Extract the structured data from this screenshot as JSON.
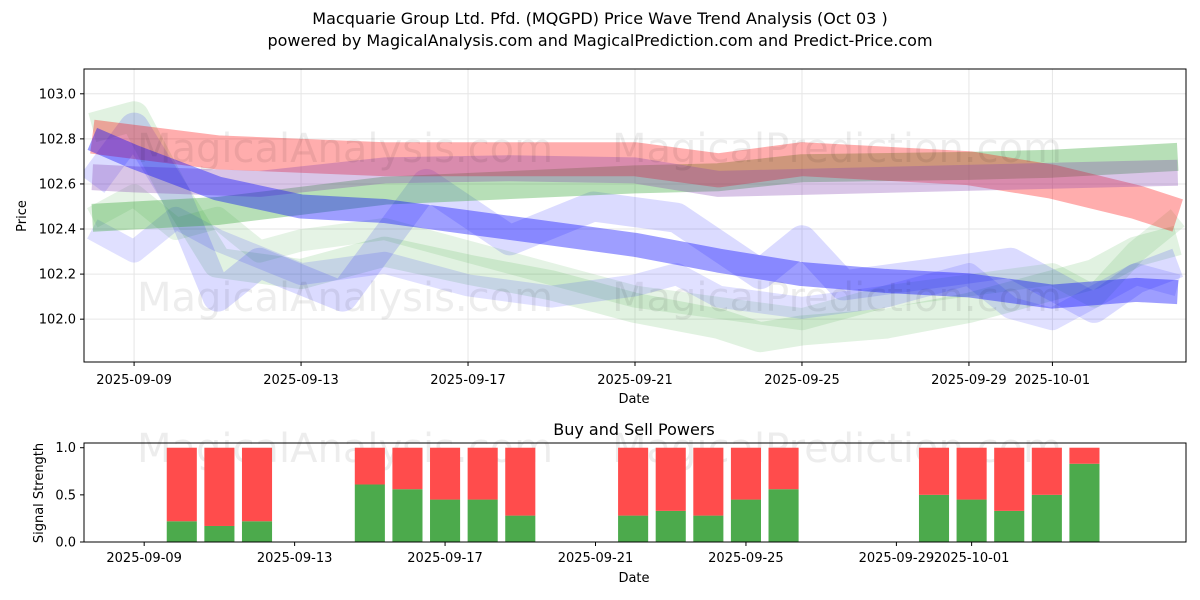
{
  "title": "Macquarie Group Ltd. Pfd. (MQGPD) Price Wave Trend Analysis (Oct 03 )",
  "subtitle": "powered by MagicalAnalysis.com and MagicalPrediction.com and Predict-Price.com",
  "watermarks": [
    "MagicalAnalysis.com",
    "MagicalPrediction.com"
  ],
  "colors": {
    "green": "#2ca02c",
    "red": "#ff0000",
    "blue": "#0000ff",
    "buy": "#4caa4c",
    "sell": "#ff4c4c"
  },
  "chart_data": [
    {
      "type": "line",
      "title": "",
      "xlabel": "Date",
      "ylabel": "Price",
      "ylim": [
        101.81,
        103.11
      ],
      "xlim": [
        "2025-09-07.8",
        "2025-10-04.2"
      ],
      "x_ticks": [
        "2025-09-09",
        "2025-09-13",
        "2025-09-17",
        "2025-09-21",
        "2025-09-25",
        "2025-09-29",
        "2025-10-01"
      ],
      "y_ticks": [
        "102.0",
        "102.2",
        "102.4",
        "102.6",
        "102.8",
        "103.0"
      ],
      "series": [
        {
          "name": "red trend band",
          "color": "#ff0000",
          "x_days": [
            8.0,
            11.0,
            15.0,
            21.0,
            23.0,
            25.0,
            29.0,
            31.0,
            33.0,
            34.0
          ],
          "values": [
            102.81,
            102.74,
            102.71,
            102.71,
            102.66,
            102.71,
            102.67,
            102.61,
            102.52,
            102.46
          ]
        },
        {
          "name": "green trend band",
          "color": "#2ca02c",
          "x_days": [
            8.0,
            11.0,
            15.0,
            21.0,
            23.0,
            25.0,
            29.0,
            31.0,
            34.0
          ],
          "values": [
            102.45,
            102.48,
            102.57,
            102.62,
            102.63,
            102.67,
            102.68,
            102.69,
            102.72
          ]
        },
        {
          "name": "purple trend band",
          "color": "#8040b0",
          "x_days": [
            8.0,
            9.0,
            12.0,
            15.0,
            18.0,
            21.0,
            23.0,
            34.0
          ],
          "values": [
            102.63,
            102.62,
            102.6,
            102.66,
            102.67,
            102.66,
            102.6,
            102.65
          ]
        },
        {
          "name": "blue trend line",
          "color": "#0000ff",
          "x_days": [
            8.0,
            9.0,
            11.0,
            13.0,
            15.0,
            17.0,
            19.0,
            21.0,
            23.0,
            25.0,
            27.0,
            29.0,
            31.0,
            33.0,
            34.0
          ],
          "values": [
            102.8,
            102.72,
            102.58,
            102.5,
            102.48,
            102.43,
            102.38,
            102.33,
            102.26,
            102.2,
            102.17,
            102.15,
            102.1,
            102.13,
            102.12
          ]
        },
        {
          "name": "green wave band",
          "color": "#2ca02c",
          "x_days": [
            8.0,
            9.0,
            10.0,
            11.0,
            13.0,
            15.0,
            17.0,
            19.0,
            21.0,
            23.0,
            24.0,
            25.0,
            27.0,
            29.0,
            31.0,
            32.0,
            33.0,
            34.0
          ],
          "values": [
            102.85,
            102.9,
            102.55,
            102.25,
            102.2,
            102.3,
            102.22,
            102.15,
            102.05,
            101.98,
            101.92,
            101.95,
            101.98,
            102.05,
            102.15,
            102.2,
            102.3,
            102.35
          ]
        },
        {
          "name": "blue wave band",
          "color": "#0000ff",
          "x_days": [
            8.0,
            9.0,
            10.0,
            11.0,
            12.0,
            14.0,
            16.0,
            18.0,
            20.0,
            22.0,
            24.0,
            25.0,
            26.0,
            28.0,
            30.0,
            32.0,
            33.0,
            34.0
          ],
          "values": [
            102.6,
            102.85,
            102.55,
            102.1,
            102.25,
            102.1,
            102.6,
            102.35,
            102.5,
            102.45,
            102.2,
            102.35,
            102.15,
            102.2,
            102.25,
            102.05,
            102.18,
            102.25
          ]
        },
        {
          "name": "green wave band 2",
          "color": "#2ca02c",
          "x_days": [
            8.0,
            9.0,
            10.0,
            11.0,
            12.0,
            13.0,
            15.0,
            17.0,
            19.0,
            21.0,
            23.0,
            25.0,
            27.0,
            29.0,
            31.0,
            32.0,
            33.0,
            34.0
          ],
          "values": [
            102.45,
            102.55,
            102.4,
            102.45,
            102.3,
            102.35,
            102.4,
            102.3,
            102.2,
            102.1,
            102.05,
            102.0,
            102.1,
            102.15,
            102.2,
            102.1,
            102.3,
            102.45
          ]
        },
        {
          "name": "blue wave band 2",
          "color": "#0000ff",
          "x_days": [
            8.0,
            9.0,
            10.0,
            11.0,
            13.0,
            15.0,
            17.0,
            19.0,
            21.0,
            22.0,
            23.0,
            25.0,
            27.0,
            29.0,
            30.0,
            31.0,
            32.0,
            33.0,
            34.0
          ],
          "values": [
            102.4,
            102.3,
            102.45,
            102.35,
            102.2,
            102.25,
            102.15,
            102.1,
            102.15,
            102.2,
            102.1,
            102.05,
            102.1,
            102.2,
            102.05,
            102.0,
            102.1,
            102.2,
            102.15
          ]
        }
      ]
    },
    {
      "type": "bar",
      "title": "Buy and Sell Powers",
      "xlabel": "Date",
      "ylabel": "Signal Strength",
      "ylim": [
        0,
        1.05
      ],
      "y_ticks": [
        "0.0",
        "0.5",
        "1.0"
      ],
      "x_ticks": [
        "2025-09-09",
        "2025-09-13",
        "2025-09-17",
        "2025-09-21",
        "2025-09-25",
        "2025-09-29",
        "2025-10-01"
      ],
      "categories": [
        "2025-09-10",
        "2025-09-11",
        "2025-09-12",
        "2025-09-15",
        "2025-09-16",
        "2025-09-17",
        "2025-09-18",
        "2025-09-19",
        "2025-09-22",
        "2025-09-23",
        "2025-09-24",
        "2025-09-25",
        "2025-09-26",
        "2025-09-30",
        "2025-10-01",
        "2025-10-02",
        "2025-10-03",
        "2025-10-04"
      ],
      "x_days": [
        10,
        11,
        12,
        15,
        16,
        17,
        18,
        19,
        22,
        23,
        24,
        25,
        26,
        30,
        31,
        32,
        33,
        34
      ],
      "series": [
        {
          "name": "Buy",
          "color": "#4caa4c",
          "values": [
            0.22,
            0.17,
            0.22,
            0.61,
            0.56,
            0.45,
            0.45,
            0.28,
            0.28,
            0.33,
            0.28,
            0.45,
            0.56,
            0.5,
            0.45,
            0.33,
            0.5,
            0.83
          ]
        },
        {
          "name": "Sell",
          "color": "#ff4c4c",
          "values": [
            0.78,
            0.83,
            0.78,
            0.39,
            0.44,
            0.55,
            0.55,
            0.72,
            0.72,
            0.67,
            0.72,
            0.55,
            0.44,
            0.5,
            0.55,
            0.67,
            0.5,
            0.17
          ]
        }
      ]
    }
  ]
}
